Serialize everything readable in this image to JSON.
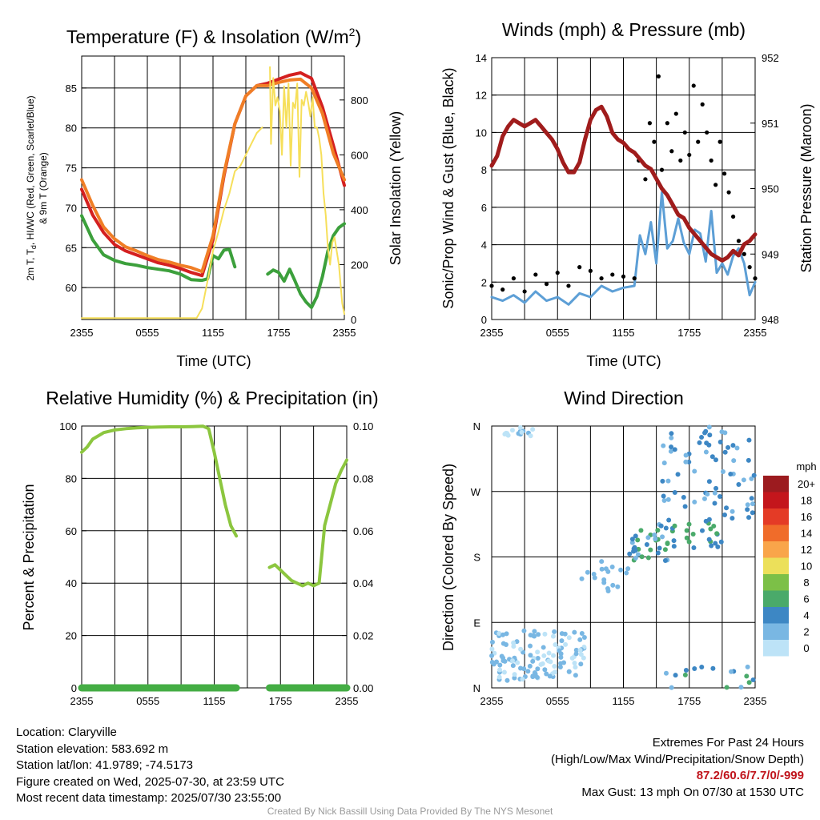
{
  "colors": {
    "temp": "#d42020",
    "dew": "#3ca03c",
    "hiwc": "#2ca02c",
    "temp9m": "#f07e26",
    "insol": "#f6df5a",
    "wind": "#5d9fd6",
    "gust": "#000000",
    "pressure": "#a01c1c",
    "rh": "#8cc63f",
    "precip": "#44ad44"
  },
  "panels": {
    "temp": {
      "title": "Temperature (F) & Insolation (W/m",
      "title_sup": "2",
      "title_end": ")",
      "xlabel": "Time (UTC)",
      "ylabel_left_1": "2m T, T",
      "ylabel_left_sub": "d",
      "ylabel_left_2": ", HI/WC (Red, Green, Scarlet/Blue)",
      "ylabel_left_3": "& 9m T (Orange)",
      "ylabel_right": "Solar Insolation (Yellow)"
    },
    "winds": {
      "title": "Winds (mph) & Pressure (mb)",
      "xlabel": "Time (UTC)",
      "ylabel_left": "Sonic/Prop Wind & Gust (Blue, Black)",
      "ylabel_right": "Station Pressure (Maroon)"
    },
    "rh": {
      "title": "Relative Humidity (%) & Precipitation (in)",
      "ylabel_left": "Percent & Precipitation"
    },
    "dir": {
      "title": "Wind Direction",
      "ylabel_left": "Direction (Colored By Speed)",
      "colorbar_title": "mph",
      "colorbar_labels": [
        "20+",
        "18",
        "16",
        "14",
        "12",
        "10",
        "8",
        "6",
        "4",
        "2",
        "0"
      ],
      "colorbar_colors": [
        "#9c1b1f",
        "#c4161c",
        "#e43b26",
        "#f06c2a",
        "#f9a54a",
        "#ece05a",
        "#7cc047",
        "#4aaa6a",
        "#3d87c4",
        "#79b7e3",
        "#bde3f7"
      ]
    }
  },
  "info": {
    "location": "Location: Claryville",
    "elevation": "Station elevation: 583.692 m",
    "latlon": "Station lat/lon: 41.9789; -74.5173",
    "created": "Figure created on Wed, 2025-07-30, at 23:59 UTC",
    "recent": "Most recent data timestamp: 2025/07/30 23:55:00",
    "extremes_title": "Extremes For Past 24 Hours",
    "extremes_sub": "(High/Low/Max Wind/Precipitation/Snow Depth)",
    "extremes_values": "87.2/60.6/7.7/0/-999",
    "max_gust": "Max Gust: 13 mph On 07/30 at 1530 UTC",
    "credit": "Created By Nick Bassill Using Data Provided By The NYS Mesonet"
  },
  "chart_data": [
    {
      "type": "line",
      "title": "Temperature (F) & Insolation (W/m2)",
      "xlabel": "Time (UTC)",
      "x_ticks": [
        "2355",
        "0555",
        "1155",
        "1755",
        "2355"
      ],
      "xlim_hours": [
        0,
        24
      ],
      "ylim": [
        56,
        89
      ],
      "ylim_right": [
        0,
        960
      ],
      "y_ticks": [
        60,
        65,
        70,
        75,
        80,
        85
      ],
      "y_ticks_right": [
        0,
        200,
        400,
        600,
        800
      ],
      "series": [
        {
          "axis": "left",
          "color": "temp",
          "x": [
            0,
            1,
            2,
            3,
            4,
            5,
            6,
            7,
            8,
            9,
            10,
            11,
            12,
            13,
            14,
            15,
            16,
            17,
            18,
            19,
            20,
            21,
            22,
            23,
            24
          ],
          "y": [
            72.3,
            69.1,
            66.9,
            65.4,
            64.6,
            64.1,
            63.6,
            63.1,
            62.8,
            62.4,
            61.9,
            61.5,
            66,
            74,
            80.5,
            84,
            85.3,
            85.6,
            86.1,
            86.6,
            86.9,
            86.2,
            82.6,
            77.8,
            72.8
          ]
        },
        {
          "axis": "left",
          "color": "temp9m",
          "x": [
            0,
            1,
            2,
            3,
            4,
            5,
            6,
            7,
            8,
            9,
            10,
            11,
            12,
            13,
            14,
            15,
            16,
            17,
            18,
            19,
            20,
            21,
            22,
            23,
            24
          ],
          "y": [
            73.5,
            70.3,
            67.6,
            66.1,
            65.1,
            64.6,
            64,
            63.5,
            63.2,
            62.8,
            62.5,
            62,
            66.5,
            74.3,
            80.5,
            84,
            85.3,
            85.3,
            85.7,
            86,
            86.1,
            85,
            81.8,
            76.8,
            73.5
          ]
        },
        {
          "axis": "left",
          "color": "dew",
          "x": [
            0,
            1,
            2,
            3,
            4,
            5,
            6,
            7,
            8,
            9,
            10,
            11,
            11.5,
            12,
            12.5,
            13,
            13.5,
            14
          ],
          "y": [
            69,
            66,
            64.1,
            63.4,
            63,
            62.8,
            62.5,
            62.3,
            62.1,
            61.7,
            61,
            60.9,
            61.1,
            64,
            63.6,
            64.7,
            64.8,
            62.6
          ]
        },
        {
          "axis": "left",
          "color": "dew",
          "x": [
            17,
            17.5,
            18,
            18.5,
            19,
            19.5,
            20,
            20.5,
            21,
            21.5,
            22,
            22.5,
            23,
            23.5,
            24
          ],
          "y": [
            61.7,
            62.2,
            61.9,
            60.8,
            62.3,
            60.8,
            59.2,
            58.2,
            57.5,
            58.9,
            61.4,
            64.6,
            66.5,
            67.5,
            68
          ]
        },
        {
          "axis": "right",
          "color": "insol",
          "x": [
            0,
            10.5,
            11,
            11.3,
            11.6,
            12,
            12.5,
            13,
            13.5,
            14,
            14.5,
            15,
            15.5,
            16,
            16.5
          ],
          "y": [
            5,
            5,
            40,
            100,
            160,
            250,
            320,
            400,
            460,
            540,
            560,
            600,
            640,
            680,
            700
          ]
        },
        {
          "axis": "right",
          "color": "insol",
          "x": [
            17.2,
            17.3,
            17.5,
            17.7,
            17.9,
            18.1,
            18.3,
            18.5,
            18.7,
            18.9,
            19.1,
            19.3,
            19.5,
            19.7,
            19.9,
            20.1,
            20.3,
            20.5,
            20.7,
            20.9,
            21.1,
            21.3,
            21.5,
            21.7,
            21.9,
            22.1,
            22.3,
            22.5,
            22.7,
            22.9,
            23.1,
            23.5,
            23.8,
            24
          ],
          "y": [
            920,
            640,
            880,
            780,
            810,
            760,
            600,
            850,
            700,
            860,
            560,
            790,
            770,
            860,
            520,
            800,
            780,
            830,
            790,
            740,
            810,
            700,
            700,
            660,
            600,
            460,
            380,
            260,
            200,
            280,
            300,
            200,
            60,
            20
          ]
        }
      ]
    },
    {
      "type": "line",
      "title": "Winds (mph) & Pressure (mb)",
      "xlabel": "Time (UTC)",
      "x_ticks": [
        "2355",
        "0555",
        "1155",
        "1755",
        "2355"
      ],
      "xlim_hours": [
        0,
        24
      ],
      "ylim": [
        0,
        14
      ],
      "ylim_right": [
        948,
        952
      ],
      "y_ticks": [
        0,
        2,
        4,
        6,
        8,
        10,
        12,
        14
      ],
      "y_ticks_right": [
        948,
        949,
        950,
        951,
        952
      ],
      "series": [
        {
          "axis": "left",
          "color": "wind",
          "x": [
            0,
            1,
            2,
            3,
            4,
            5,
            6,
            7,
            8,
            9,
            10,
            11,
            12,
            13,
            13.5,
            14,
            14.5,
            15,
            15.5,
            16,
            16.5,
            17,
            17.5,
            18,
            18.5,
            19,
            19.5,
            20,
            20.5,
            21,
            21.5,
            22,
            22.5,
            23,
            23.5,
            24
          ],
          "y": [
            1.2,
            1,
            1.3,
            0.9,
            1.5,
            1,
            1.2,
            0.8,
            1.4,
            1.2,
            1.8,
            1.5,
            1.7,
            1.8,
            4.5,
            3.5,
            5.2,
            3,
            6.8,
            3.8,
            4.2,
            5.4,
            4.1,
            3.5,
            4.8,
            4.6,
            3.1,
            5.8,
            2.5,
            3,
            2.4,
            3.4,
            3.8,
            3,
            1.3,
            2
          ]
        },
        {
          "axis": "left",
          "color": "gust",
          "marker": "dot",
          "x": [
            0,
            1,
            2,
            3,
            4,
            5,
            6,
            7,
            8,
            9,
            10,
            11,
            12,
            13,
            13.4,
            14,
            14.4,
            14.8,
            15.2,
            15.5,
            16,
            16.4,
            16.8,
            17.2,
            17.6,
            18,
            18.4,
            18.8,
            19.2,
            19.6,
            20,
            20.4,
            20.8,
            21.2,
            21.6,
            22,
            22.5,
            23,
            23.5,
            24
          ],
          "y": [
            1.8,
            1.6,
            2.2,
            1.5,
            2.4,
            1.9,
            2.5,
            1.8,
            2.8,
            2.6,
            2.2,
            2.4,
            2.3,
            2.2,
            8.5,
            7.5,
            10.5,
            9.5,
            13,
            8,
            10.5,
            9,
            11,
            8.5,
            10,
            8.8,
            12.5,
            9.5,
            11.5,
            10,
            8.5,
            7.2,
            9.5,
            7.8,
            6.8,
            5.5,
            4.2,
            3.5,
            2.8,
            2.2
          ]
        },
        {
          "axis": "right",
          "color": "pressure",
          "x": [
            0,
            0.5,
            1,
            1.5,
            2,
            2.5,
            3,
            3.5,
            4,
            4.5,
            5,
            5.5,
            6,
            6.5,
            7,
            7.5,
            8,
            8.5,
            9,
            9.5,
            10,
            10.5,
            11,
            11.5,
            12,
            12.5,
            13,
            13.5,
            14,
            14.5,
            15,
            15.5,
            16,
            16.5,
            17,
            17.5,
            18,
            18.5,
            19,
            19.5,
            20,
            20.5,
            21,
            21.5,
            22,
            22.5,
            23,
            23.5,
            24
          ],
          "y": [
            950.35,
            950.5,
            950.8,
            950.95,
            951.05,
            951.0,
            950.95,
            951.0,
            951.05,
            950.95,
            950.85,
            950.75,
            950.6,
            950.4,
            950.25,
            950.25,
            950.4,
            950.75,
            951.05,
            951.2,
            951.25,
            951.1,
            950.85,
            950.75,
            950.7,
            950.6,
            950.55,
            950.45,
            950.35,
            950.3,
            950.15,
            950.0,
            949.9,
            949.75,
            949.6,
            949.55,
            949.4,
            949.3,
            949.2,
            949.1,
            949.0,
            948.95,
            948.9,
            948.95,
            949.05,
            948.98,
            949.15,
            949.2,
            949.3
          ]
        }
      ]
    },
    {
      "type": "line",
      "title": "Relative Humidity (%) & Precipitation (in)",
      "x_ticks": [
        "2355",
        "0555",
        "1155",
        "1755",
        "2355"
      ],
      "xlim_hours": [
        0,
        24
      ],
      "ylim": [
        0,
        100
      ],
      "ylim_right": [
        0,
        0.1
      ],
      "y_ticks": [
        0,
        20,
        40,
        60,
        80,
        100
      ],
      "y_ticks_right": [
        0.0,
        0.02,
        0.04,
        0.06,
        0.08,
        0.1
      ],
      "series": [
        {
          "axis": "left",
          "color": "rh",
          "x": [
            0,
            0.5,
            1,
            2,
            3,
            4,
            5,
            6,
            7,
            8,
            9,
            10,
            11,
            11.5,
            12,
            12.5,
            13,
            13.5,
            14
          ],
          "y": [
            90,
            92,
            95,
            97.5,
            98.5,
            99,
            99.3,
            99.5,
            99.6,
            99.7,
            99.7,
            99.8,
            99.9,
            99,
            90,
            80,
            70,
            62,
            58
          ]
        },
        {
          "axis": "left",
          "color": "rh",
          "x": [
            17,
            17.5,
            18,
            18.5,
            19,
            19.5,
            20,
            20.5,
            21,
            21.5,
            22,
            22.5,
            23,
            23.5,
            24
          ],
          "y": [
            46,
            47,
            45,
            43,
            41,
            40,
            39,
            40,
            39,
            40,
            62,
            70,
            78,
            83,
            87
          ]
        },
        {
          "axis": "left",
          "color": "precip",
          "x": [
            0,
            14
          ],
          "y": [
            0,
            0
          ]
        },
        {
          "axis": "left",
          "color": "precip",
          "x": [
            17,
            24
          ],
          "y": [
            0,
            0
          ]
        }
      ]
    },
    {
      "type": "scatter",
      "title": "Wind Direction",
      "x_ticks": [
        "2355",
        "0555",
        "1155",
        "1755",
        "2355"
      ],
      "xlim_hours": [
        0,
        24
      ],
      "ylim_deg": [
        0,
        360
      ],
      "y_ticks": [
        "N",
        "E",
        "S",
        "W",
        "N"
      ],
      "clusters": [
        {
          "x": [
            0,
            8.5
          ],
          "y": [
            10,
            80
          ],
          "speed": [
            0,
            3
          ],
          "n": 120
        },
        {
          "x": [
            1,
            4.5
          ],
          "y": [
            345,
            360
          ],
          "speed": [
            0,
            2
          ],
          "n": 14
        },
        {
          "x": [
            7.5,
            10
          ],
          "y": [
            150,
            170
          ],
          "speed": [
            1,
            2
          ],
          "n": 4
        },
        {
          "x": [
            10,
            12.5
          ],
          "y": [
            120,
            175
          ],
          "speed": [
            1,
            3
          ],
          "n": 14
        },
        {
          "x": [
            12.5,
            16
          ],
          "y": [
            175,
            225
          ],
          "speed": [
            2,
            7
          ],
          "n": 34
        },
        {
          "x": [
            16,
            21
          ],
          "y": [
            190,
            230
          ],
          "speed": [
            3,
            7
          ],
          "n": 26
        },
        {
          "x": [
            15.5,
            24
          ],
          "y": [
            230,
            360
          ],
          "speed": [
            2,
            5
          ],
          "n": 70
        },
        {
          "x": [
            15.5,
            24
          ],
          "y": [
            0,
            30
          ],
          "speed": [
            2,
            6
          ],
          "n": 16
        }
      ]
    }
  ]
}
